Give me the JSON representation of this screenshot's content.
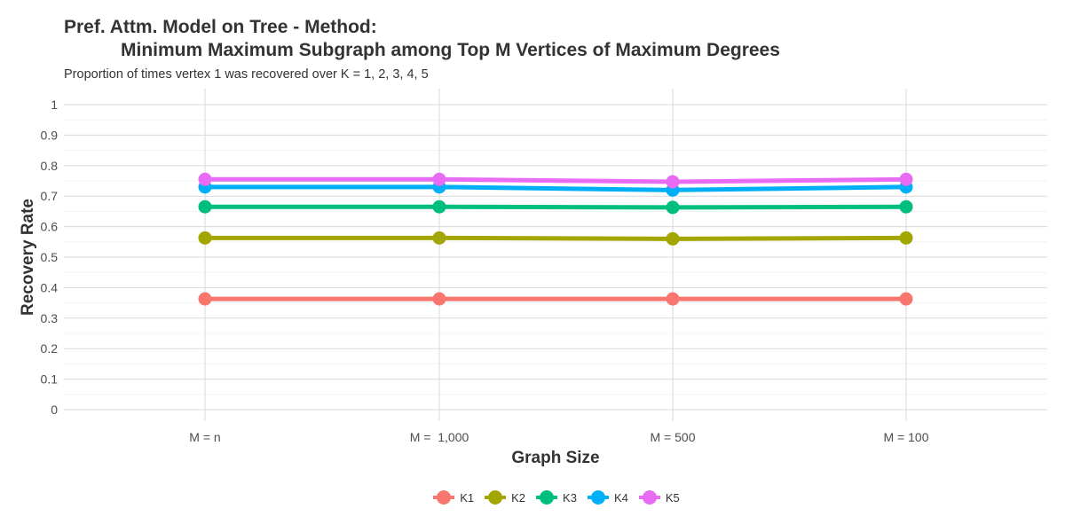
{
  "title_line1": "Pref. Attm. Model on Tree - Method:",
  "title_line2": "Minimum Maximum Subgraph among Top M Vertices of Maximum Degrees",
  "subtitle": "Proportion of times vertex 1 was recovered over K = 1, 2, 3, 4, 5",
  "chart_data": {
    "type": "line",
    "title": "Pref. Attm. Model on Tree - Method: Minimum Maximum Subgraph among Top M Vertices of Maximum Degrees",
    "subtitle": "Proportion of times vertex 1 was recovered over K = 1, 2, 3, 4, 5",
    "xlabel": "Graph Size",
    "ylabel": "Recovery Rate",
    "categories": [
      "M = n",
      "M =  1,000",
      "M = 500",
      "M = 100"
    ],
    "ylim": [
      0,
      1
    ],
    "yticks": [
      0,
      0.1,
      0.2,
      0.3,
      0.4,
      0.5,
      0.6,
      0.7,
      0.8,
      0.9,
      1
    ],
    "ytick_labels": [
      "0",
      "0.1",
      "0.2",
      "0.3",
      "0.4",
      "0.5",
      "0.6",
      "0.7",
      "0.8",
      "0.9",
      "1"
    ],
    "grid": true,
    "legend_position": "bottom",
    "series": [
      {
        "name": "K1",
        "color": "#F8766D",
        "values": [
          0.363,
          0.363,
          0.363,
          0.363
        ]
      },
      {
        "name": "K2",
        "color": "#A3A500",
        "values": [
          0.563,
          0.563,
          0.56,
          0.563
        ]
      },
      {
        "name": "K3",
        "color": "#00BF7D",
        "values": [
          0.665,
          0.665,
          0.663,
          0.665
        ]
      },
      {
        "name": "K4",
        "color": "#00B0F6",
        "values": [
          0.73,
          0.73,
          0.72,
          0.73
        ]
      },
      {
        "name": "K5",
        "color": "#E76BF3",
        "values": [
          0.755,
          0.755,
          0.747,
          0.755
        ]
      }
    ]
  }
}
